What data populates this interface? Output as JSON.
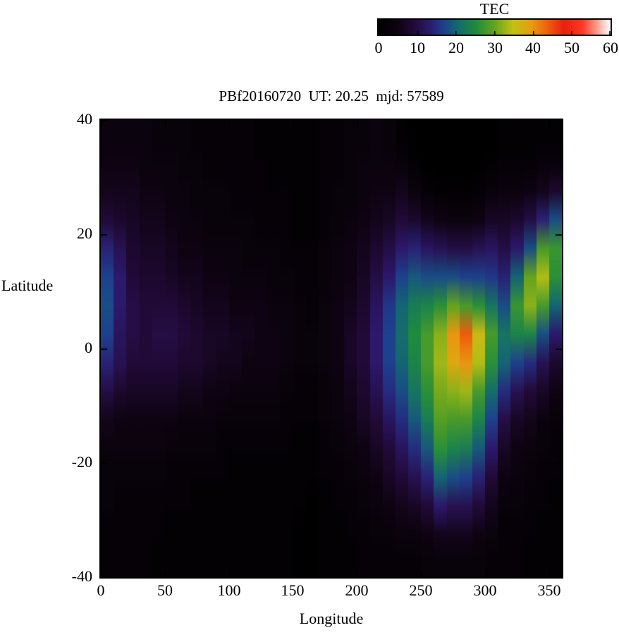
{
  "figure": {
    "title": "PBf20160720  UT: 20.25  mjd: 57589"
  },
  "colorbar": {
    "label": "TEC",
    "min": 0,
    "max": 60,
    "ticks": [
      "0",
      "10",
      "20",
      "30",
      "40",
      "50",
      "60"
    ]
  },
  "axes": {
    "xlabel": "Longitude",
    "ylabel": "Latitude",
    "x_ticks": [
      "0",
      "50",
      "100",
      "150",
      "200",
      "250",
      "300",
      "350"
    ],
    "x_tick_values": [
      0,
      50,
      100,
      150,
      200,
      250,
      300,
      350
    ],
    "y_ticks": [
      "40",
      "20",
      "0",
      "-20",
      "-40"
    ],
    "y_tick_values": [
      40,
      20,
      0,
      -20,
      -40
    ]
  },
  "chart_data": {
    "type": "heatmap",
    "title": "PBf20160720  UT: 20.25  mjd: 57589",
    "xlabel": "Longitude",
    "ylabel": "Latitude",
    "xlim": [
      0,
      360
    ],
    "ylim": [
      -40,
      40
    ],
    "colorbar_label": "TEC",
    "crange": [
      0,
      60
    ],
    "lon_centers": [
      5,
      15,
      25,
      35,
      45,
      55,
      65,
      75,
      85,
      95,
      105,
      115,
      125,
      135,
      145,
      155,
      165,
      175,
      185,
      195,
      205,
      215,
      225,
      235,
      245,
      255,
      265,
      275,
      285,
      295,
      305,
      315,
      325,
      335,
      345,
      355
    ],
    "lat_centers_top_to_bottom": [
      37.5,
      32.5,
      27.5,
      22.5,
      17.5,
      12.5,
      7.5,
      2.5,
      -2.5,
      -7.5,
      -12.5,
      -17.5,
      -22.5,
      -27.5,
      -32.5,
      -37.5
    ],
    "values_rows_top_to_bottom": [
      [
        4,
        4,
        4,
        4,
        3,
        3,
        3,
        2,
        2,
        2,
        2,
        2,
        1,
        1,
        1,
        1,
        1,
        2,
        2,
        3,
        3,
        4,
        3,
        1,
        0,
        0,
        0,
        0,
        0,
        0,
        0,
        1,
        1,
        1,
        1,
        1
      ],
      [
        5,
        5,
        5,
        4,
        4,
        4,
        3,
        3,
        2,
        2,
        2,
        2,
        2,
        1,
        1,
        1,
        1,
        2,
        2,
        3,
        4,
        4,
        4,
        3,
        1,
        0,
        0,
        0,
        0,
        0,
        1,
        2,
        2,
        2,
        3,
        3
      ],
      [
        6,
        6,
        6,
        5,
        5,
        4,
        4,
        3,
        3,
        3,
        2,
        2,
        2,
        2,
        2,
        1,
        1,
        2,
        3,
        3,
        4,
        5,
        5,
        6,
        4,
        2,
        1,
        1,
        1,
        2,
        3,
        4,
        4,
        5,
        6,
        8
      ],
      [
        9,
        8,
        7,
        6,
        6,
        5,
        4,
        4,
        3,
        3,
        3,
        3,
        2,
        2,
        2,
        1,
        1,
        2,
        3,
        4,
        5,
        6,
        7,
        9,
        8,
        6,
        5,
        4,
        4,
        5,
        7,
        7,
        8,
        10,
        14,
        18
      ],
      [
        14,
        11,
        8,
        7,
        7,
        6,
        5,
        5,
        4,
        4,
        4,
        3,
        3,
        3,
        2,
        2,
        2,
        3,
        4,
        5,
        6,
        8,
        10,
        13,
        14,
        12,
        11,
        10,
        10,
        11,
        12,
        10,
        13,
        18,
        28,
        27
      ],
      [
        17,
        13,
        9,
        8,
        8,
        7,
        6,
        6,
        5,
        5,
        4,
        4,
        4,
        3,
        3,
        2,
        2,
        3,
        4,
        5,
        7,
        10,
        13,
        17,
        19,
        18,
        18,
        18,
        17,
        17,
        16,
        14,
        20,
        30,
        34,
        26
      ],
      [
        18,
        13,
        10,
        9,
        9,
        9,
        8,
        7,
        6,
        6,
        5,
        5,
        5,
        4,
        4,
        3,
        2,
        4,
        5,
        6,
        8,
        12,
        16,
        20,
        23,
        24,
        26,
        30,
        28,
        26,
        22,
        18,
        27,
        32,
        28,
        20
      ],
      [
        17,
        12,
        10,
        9,
        10,
        10,
        9,
        8,
        7,
        7,
        6,
        6,
        5,
        5,
        4,
        3,
        3,
        4,
        5,
        7,
        9,
        13,
        17,
        21,
        25,
        28,
        32,
        40,
        44,
        36,
        28,
        22,
        24,
        24,
        18,
        13
      ],
      [
        14,
        11,
        9,
        9,
        9,
        9,
        8,
        8,
        7,
        6,
        6,
        5,
        5,
        5,
        4,
        3,
        3,
        4,
        5,
        7,
        9,
        13,
        17,
        20,
        24,
        28,
        33,
        38,
        40,
        34,
        26,
        20,
        17,
        15,
        11,
        8
      ],
      [
        10,
        8,
        7,
        7,
        7,
        7,
        6,
        6,
        5,
        5,
        4,
        4,
        4,
        4,
        3,
        2,
        2,
        3,
        4,
        6,
        8,
        11,
        15,
        18,
        22,
        26,
        31,
        32,
        33,
        28,
        21,
        15,
        11,
        9,
        7,
        5
      ],
      [
        6,
        5,
        5,
        5,
        5,
        5,
        4,
        4,
        4,
        3,
        3,
        3,
        3,
        3,
        2,
        2,
        2,
        3,
        4,
        5,
        7,
        9,
        12,
        15,
        19,
        23,
        29,
        28,
        28,
        24,
        17,
        10,
        7,
        6,
        4,
        3
      ],
      [
        4,
        4,
        4,
        4,
        4,
        3,
        3,
        3,
        3,
        2,
        2,
        2,
        2,
        2,
        2,
        1,
        1,
        2,
        3,
        4,
        5,
        7,
        9,
        12,
        15,
        19,
        26,
        24,
        23,
        19,
        13,
        7,
        5,
        4,
        3,
        2
      ],
      [
        3,
        3,
        3,
        3,
        3,
        2,
        2,
        2,
        2,
        2,
        1,
        1,
        1,
        1,
        1,
        1,
        1,
        2,
        2,
        3,
        4,
        5,
        7,
        9,
        11,
        14,
        20,
        18,
        17,
        14,
        9,
        5,
        4,
        3,
        2,
        2
      ],
      [
        3,
        2,
        2,
        2,
        2,
        2,
        2,
        1,
        1,
        1,
        1,
        1,
        1,
        1,
        1,
        1,
        0,
        1,
        2,
        2,
        3,
        4,
        5,
        6,
        7,
        9,
        13,
        11,
        11,
        9,
        6,
        3,
        3,
        2,
        2,
        1
      ],
      [
        2,
        2,
        2,
        2,
        2,
        1,
        1,
        1,
        1,
        1,
        1,
        1,
        1,
        1,
        1,
        0,
        0,
        1,
        1,
        2,
        2,
        3,
        3,
        4,
        4,
        5,
        6,
        6,
        6,
        5,
        4,
        2,
        2,
        2,
        1,
        1
      ],
      [
        2,
        2,
        2,
        2,
        1,
        1,
        1,
        1,
        1,
        1,
        1,
        1,
        1,
        1,
        1,
        0,
        0,
        1,
        1,
        1,
        2,
        2,
        2,
        2,
        2,
        3,
        3,
        3,
        3,
        3,
        2,
        2,
        2,
        1,
        1,
        1
      ]
    ],
    "palette": [
      {
        "t": 0.0,
        "c": "#000000"
      },
      {
        "t": 0.08,
        "c": "#0d0310"
      },
      {
        "t": 0.15,
        "c": "#220a38"
      },
      {
        "t": 0.22,
        "c": "#2c1a6e"
      },
      {
        "t": 0.28,
        "c": "#1e3f8f"
      },
      {
        "t": 0.34,
        "c": "#136a70"
      },
      {
        "t": 0.42,
        "c": "#1f8c3c"
      },
      {
        "t": 0.5,
        "c": "#64a41e"
      },
      {
        "t": 0.58,
        "c": "#c2c214"
      },
      {
        "t": 0.66,
        "c": "#e89c10"
      },
      {
        "t": 0.73,
        "c": "#ee5f0e"
      },
      {
        "t": 0.8,
        "c": "#e82010"
      },
      {
        "t": 0.88,
        "c": "#ff3824"
      },
      {
        "t": 0.94,
        "c": "#ff9a86"
      },
      {
        "t": 1.0,
        "c": "#ffffff"
      }
    ]
  }
}
